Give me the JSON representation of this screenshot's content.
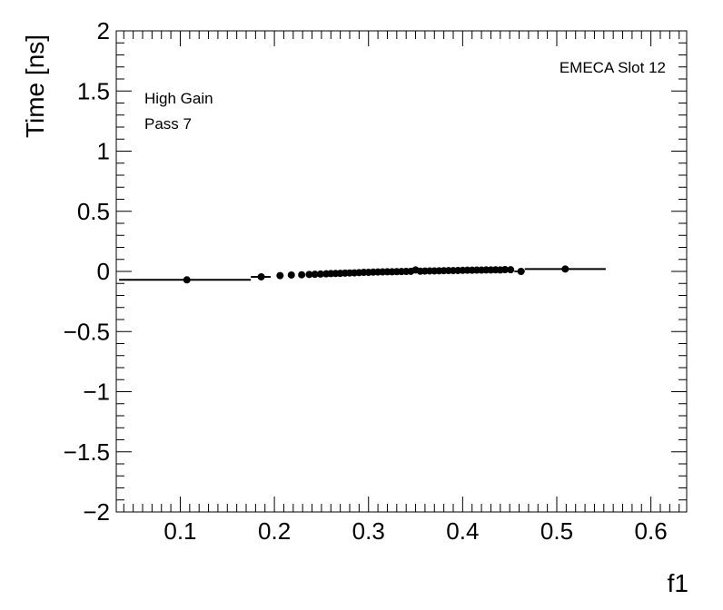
{
  "chart_data": {
    "type": "scatter",
    "title": "",
    "xlabel": "f1",
    "ylabel": "Time [ns]",
    "xlim": [
      0.032,
      0.638
    ],
    "ylim": [
      -2,
      2
    ],
    "x_ticks": [
      0.1,
      0.2,
      0.3,
      0.4,
      0.5,
      0.6
    ],
    "x_tick_labels": [
      "0.1",
      "0.2",
      "0.3",
      "0.4",
      "0.5",
      "0.6"
    ],
    "y_ticks": [
      -2,
      -1.5,
      -1,
      -0.5,
      0,
      0.5,
      1,
      1.5,
      2
    ],
    "y_tick_labels": [
      "−2",
      "−1.5",
      "−1",
      "−0.5",
      "0",
      "0.5",
      "1",
      "1.5",
      "2"
    ],
    "annotations": {
      "gain": "High Gain",
      "pass": "Pass 7",
      "slot": "EMECA Slot 12"
    },
    "grid": false,
    "legend": "none",
    "marker_color": "#000000",
    "points": [
      {
        "x": 0.107,
        "y": -0.07,
        "xerr": [
          0.035,
          0.175
        ]
      },
      {
        "x": 0.186,
        "y": -0.045,
        "xerr": [
          0.175,
          0.196
        ]
      },
      {
        "x": 0.206,
        "y": -0.035
      },
      {
        "x": 0.218,
        "y": -0.03
      },
      {
        "x": 0.229,
        "y": -0.028
      },
      {
        "x": 0.237,
        "y": -0.025
      },
      {
        "x": 0.243,
        "y": -0.024
      },
      {
        "x": 0.249,
        "y": -0.022
      },
      {
        "x": 0.255,
        "y": -0.02
      },
      {
        "x": 0.26,
        "y": -0.018
      },
      {
        "x": 0.265,
        "y": -0.017
      },
      {
        "x": 0.27,
        "y": -0.016
      },
      {
        "x": 0.275,
        "y": -0.014
      },
      {
        "x": 0.28,
        "y": -0.013
      },
      {
        "x": 0.285,
        "y": -0.012
      },
      {
        "x": 0.29,
        "y": -0.01
      },
      {
        "x": 0.295,
        "y": -0.008
      },
      {
        "x": 0.3,
        "y": -0.008
      },
      {
        "x": 0.305,
        "y": -0.006
      },
      {
        "x": 0.31,
        "y": -0.005
      },
      {
        "x": 0.315,
        "y": -0.004
      },
      {
        "x": 0.32,
        "y": -0.003
      },
      {
        "x": 0.325,
        "y": -0.003
      },
      {
        "x": 0.33,
        "y": -0.002
      },
      {
        "x": 0.335,
        "y": -0.001
      },
      {
        "x": 0.34,
        "y": 0.0
      },
      {
        "x": 0.345,
        "y": 0.001
      },
      {
        "x": 0.35,
        "y": 0.012
      },
      {
        "x": 0.355,
        "y": 0.002
      },
      {
        "x": 0.36,
        "y": 0.003
      },
      {
        "x": 0.365,
        "y": 0.004
      },
      {
        "x": 0.37,
        "y": 0.004
      },
      {
        "x": 0.375,
        "y": 0.005
      },
      {
        "x": 0.38,
        "y": 0.006
      },
      {
        "x": 0.385,
        "y": 0.007
      },
      {
        "x": 0.39,
        "y": 0.007
      },
      {
        "x": 0.395,
        "y": 0.008
      },
      {
        "x": 0.4,
        "y": 0.009
      },
      {
        "x": 0.405,
        "y": 0.01
      },
      {
        "x": 0.41,
        "y": 0.01
      },
      {
        "x": 0.415,
        "y": 0.011
      },
      {
        "x": 0.42,
        "y": 0.011
      },
      {
        "x": 0.425,
        "y": 0.012
      },
      {
        "x": 0.43,
        "y": 0.012
      },
      {
        "x": 0.435,
        "y": 0.013
      },
      {
        "x": 0.44,
        "y": 0.012
      },
      {
        "x": 0.445,
        "y": 0.015
      },
      {
        "x": 0.451,
        "y": 0.014
      },
      {
        "x": 0.462,
        "y": 0.0,
        "xerr": [
          0.455,
          0.466
        ]
      },
      {
        "x": 0.509,
        "y": 0.02,
        "xerr": [
          0.466,
          0.552
        ]
      }
    ]
  }
}
